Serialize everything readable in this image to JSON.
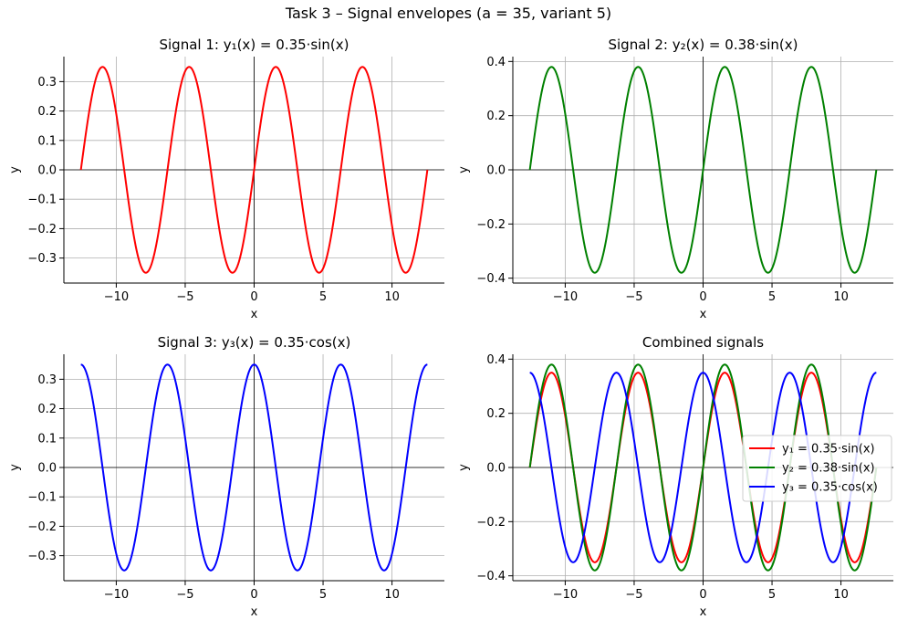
{
  "figure": {
    "suptitle": "Task 3 – Signal envelopes (a = 35, variant 5)"
  },
  "chart_data": [
    {
      "type": "line",
      "title": "Signal 1: y₁(x) = 0.35·sin(x)",
      "xlabel": "x",
      "ylabel": "y",
      "xlim": [
        -13.8,
        13.8
      ],
      "ylim": [
        -0.385,
        0.385
      ],
      "xticks": [
        -10,
        -5,
        0,
        5,
        10
      ],
      "xtick_labels": [
        "−10",
        "−5",
        "0",
        "5",
        "10"
      ],
      "yticks": [
        -0.3,
        -0.2,
        -0.1,
        0.0,
        0.1,
        0.2,
        0.3
      ],
      "ytick_labels": [
        "−0.3",
        "−0.2",
        "−0.1",
        "0.0",
        "0.1",
        "0.2",
        "0.3"
      ],
      "grid": true,
      "legend": null,
      "series": [
        {
          "fn": "sin",
          "amplitude": 0.35,
          "x_range": [
            -12.566,
            12.566
          ],
          "color": "#ff0000"
        }
      ]
    },
    {
      "type": "line",
      "title": "Signal 2: y₂(x) = 0.38·sin(x)",
      "xlabel": "x",
      "ylabel": "y",
      "xlim": [
        -13.8,
        13.8
      ],
      "ylim": [
        -0.418,
        0.418
      ],
      "xticks": [
        -10,
        -5,
        0,
        5,
        10
      ],
      "xtick_labels": [
        "−10",
        "−5",
        "0",
        "5",
        "10"
      ],
      "yticks": [
        -0.4,
        -0.2,
        0.0,
        0.2,
        0.4
      ],
      "ytick_labels": [
        "−0.4",
        "−0.2",
        "0.0",
        "0.2",
        "0.4"
      ],
      "grid": true,
      "legend": null,
      "series": [
        {
          "fn": "sin",
          "amplitude": 0.38,
          "x_range": [
            -12.566,
            12.566
          ],
          "color": "#008000"
        }
      ]
    },
    {
      "type": "line",
      "title": "Signal 3: y₃(x) = 0.35·cos(x)",
      "xlabel": "x",
      "ylabel": "y",
      "xlim": [
        -13.8,
        13.8
      ],
      "ylim": [
        -0.385,
        0.385
      ],
      "xticks": [
        -10,
        -5,
        0,
        5,
        10
      ],
      "xtick_labels": [
        "−10",
        "−5",
        "0",
        "5",
        "10"
      ],
      "yticks": [
        -0.3,
        -0.2,
        -0.1,
        0.0,
        0.1,
        0.2,
        0.3
      ],
      "ytick_labels": [
        "−0.3",
        "−0.2",
        "−0.1",
        "0.0",
        "0.1",
        "0.2",
        "0.3"
      ],
      "grid": true,
      "legend": null,
      "series": [
        {
          "fn": "cos",
          "amplitude": 0.35,
          "x_range": [
            -12.566,
            12.566
          ],
          "color": "#0000ff"
        }
      ]
    },
    {
      "type": "line",
      "title": "Combined signals",
      "xlabel": "x",
      "ylabel": "y",
      "xlim": [
        -13.8,
        13.8
      ],
      "ylim": [
        -0.418,
        0.418
      ],
      "xticks": [
        -10,
        -5,
        0,
        5,
        10
      ],
      "xtick_labels": [
        "−10",
        "−5",
        "0",
        "5",
        "10"
      ],
      "yticks": [
        -0.4,
        -0.2,
        0.0,
        0.2,
        0.4
      ],
      "ytick_labels": [
        "−0.4",
        "−0.2",
        "0.0",
        "0.2",
        "0.4"
      ],
      "grid": true,
      "legend": "center-right",
      "series": [
        {
          "name": "y₁ = 0.35·sin(x)",
          "fn": "sin",
          "amplitude": 0.35,
          "x_range": [
            -12.566,
            12.566
          ],
          "color": "#ff0000"
        },
        {
          "name": "y₂ = 0.38·sin(x)",
          "fn": "sin",
          "amplitude": 0.38,
          "x_range": [
            -12.566,
            12.566
          ],
          "color": "#008000"
        },
        {
          "name": "y₃ = 0.35·cos(x)",
          "fn": "cos",
          "amplitude": 0.35,
          "x_range": [
            -12.566,
            12.566
          ],
          "color": "#0000ff"
        }
      ]
    }
  ]
}
